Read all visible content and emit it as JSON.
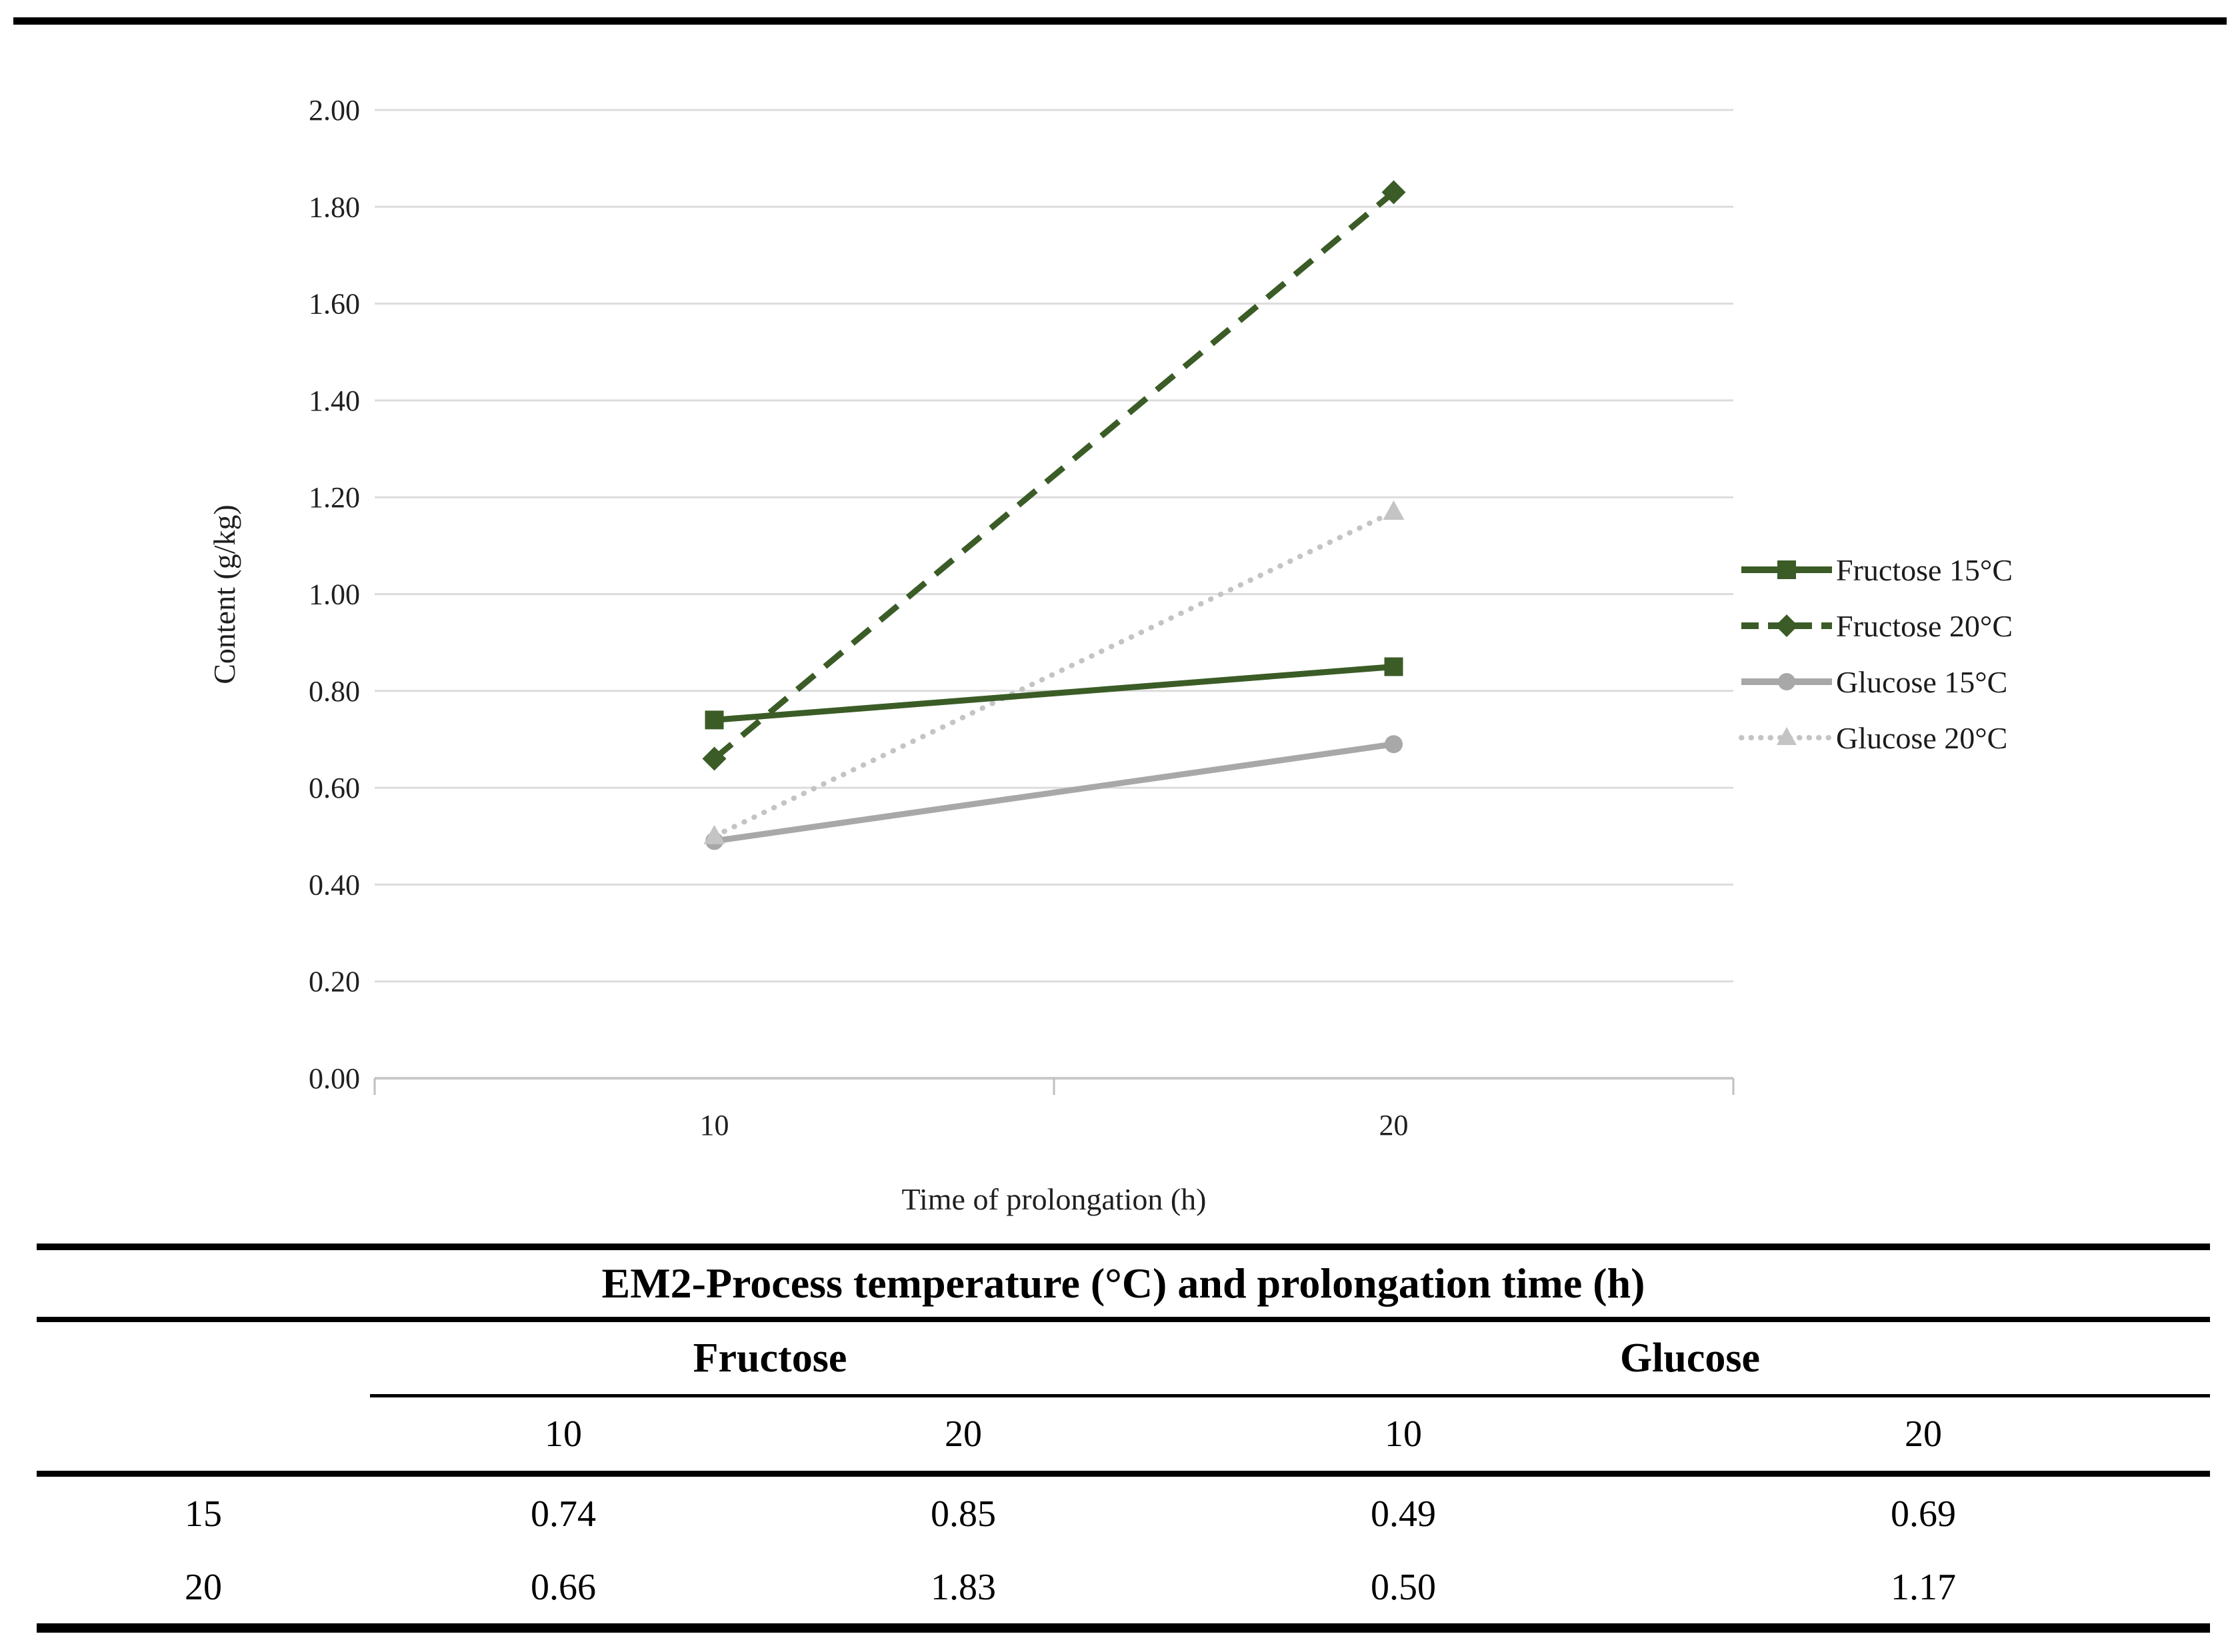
{
  "chart_data": {
    "type": "line",
    "x_categories": [
      "10",
      "20"
    ],
    "series": [
      {
        "name": "Fructose 15°C",
        "values": [
          0.74,
          0.85
        ],
        "color": "#3B5C26",
        "line_style": "solid",
        "marker": "square"
      },
      {
        "name": "Fructose 20°C",
        "values": [
          0.66,
          1.83
        ],
        "color": "#3B5C26",
        "line_style": "dashed",
        "marker": "diamond"
      },
      {
        "name": "Glucose 15°C",
        "values": [
          0.49,
          0.69
        ],
        "color": "#A8A8A8",
        "line_style": "solid",
        "marker": "circle"
      },
      {
        "name": "Glucose 20°C",
        "values": [
          0.5,
          1.17
        ],
        "color": "#C4C4C4",
        "line_style": "dotted",
        "marker": "triangle"
      }
    ],
    "xlabel": "Time of prolongation (h)",
    "ylabel": "Content (g/kg)",
    "ylim": [
      0.0,
      2.0
    ],
    "ytick_step": 0.2,
    "ytick_labels": [
      "0.00",
      "0.20",
      "0.40",
      "0.60",
      "0.80",
      "1.00",
      "1.20",
      "1.40",
      "1.60",
      "1.80",
      "2.00"
    ],
    "grid": true,
    "legend_position": "right",
    "colors": {
      "gridline": "#DCDCDC",
      "axis_line": "#C9C9C9",
      "tick_mark": "#BFBFBF",
      "text": "#1F1F1F"
    }
  },
  "table": {
    "title": "EM2-Process temperature (°C) and prolongation time (h)",
    "group_headers": [
      "Fructose",
      "Glucose"
    ],
    "sub_headers": [
      "10",
      "20",
      "10",
      "20"
    ],
    "rows": [
      {
        "label": "15",
        "values": [
          "0.74",
          "0.85",
          "0.49",
          "0.69"
        ]
      },
      {
        "label": "20",
        "values": [
          "0.66",
          "1.83",
          "0.50",
          "1.17"
        ]
      }
    ],
    "rule_color": "#000000"
  }
}
